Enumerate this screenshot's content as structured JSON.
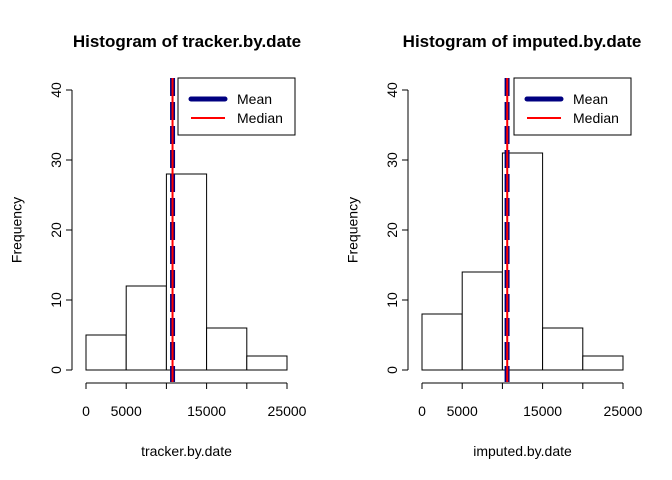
{
  "chart_data": [
    {
      "type": "bar",
      "title": "Histogram of tracker.by.date",
      "xlabel": "tracker.by.date",
      "ylabel": "Frequency",
      "bins": [
        [
          0,
          5000
        ],
        [
          5000,
          10000
        ],
        [
          10000,
          15000
        ],
        [
          15000,
          20000
        ],
        [
          20000,
          25000
        ]
      ],
      "values": [
        5,
        12,
        28,
        6,
        2
      ],
      "xlim": [
        0,
        25000
      ],
      "ylim": [
        0,
        40
      ],
      "xticks": [
        0,
        5000,
        10000,
        15000,
        20000,
        25000
      ],
      "xtick_labels": [
        "0",
        "5000",
        "",
        "15000",
        "",
        "25000"
      ],
      "yticks": [
        0,
        10,
        20,
        30,
        40
      ],
      "ytick_labels": [
        "0",
        "10",
        "20",
        "30",
        "40"
      ],
      "mean": 10766,
      "median": 10765,
      "grid": false,
      "legend_position": "top-right",
      "legend": [
        {
          "label": "Mean",
          "color": "#000080",
          "style": "dashed-thick"
        },
        {
          "label": "Median",
          "color": "#ff0000",
          "style": "solid"
        }
      ]
    },
    {
      "type": "bar",
      "title": "Histogram of imputed.by.date",
      "xlabel": "imputed.by.date",
      "ylabel": "Frequency",
      "bins": [
        [
          0,
          5000
        ],
        [
          5000,
          10000
        ],
        [
          10000,
          15000
        ],
        [
          15000,
          20000
        ],
        [
          20000,
          25000
        ]
      ],
      "values": [
        8,
        14,
        31,
        6,
        2
      ],
      "xlim": [
        0,
        25000
      ],
      "ylim": [
        0,
        40
      ],
      "xticks": [
        0,
        5000,
        10000,
        15000,
        20000,
        25000
      ],
      "xtick_labels": [
        "0",
        "5000",
        "",
        "15000",
        "",
        "25000"
      ],
      "yticks": [
        0,
        10,
        20,
        30,
        40
      ],
      "ytick_labels": [
        "0",
        "10",
        "20",
        "30",
        "40"
      ],
      "mean": 10581,
      "median": 10600,
      "grid": false,
      "legend_position": "top-right",
      "legend": [
        {
          "label": "Mean",
          "color": "#000080",
          "style": "dashed-thick"
        },
        {
          "label": "Median",
          "color": "#ff0000",
          "style": "solid"
        }
      ]
    }
  ]
}
